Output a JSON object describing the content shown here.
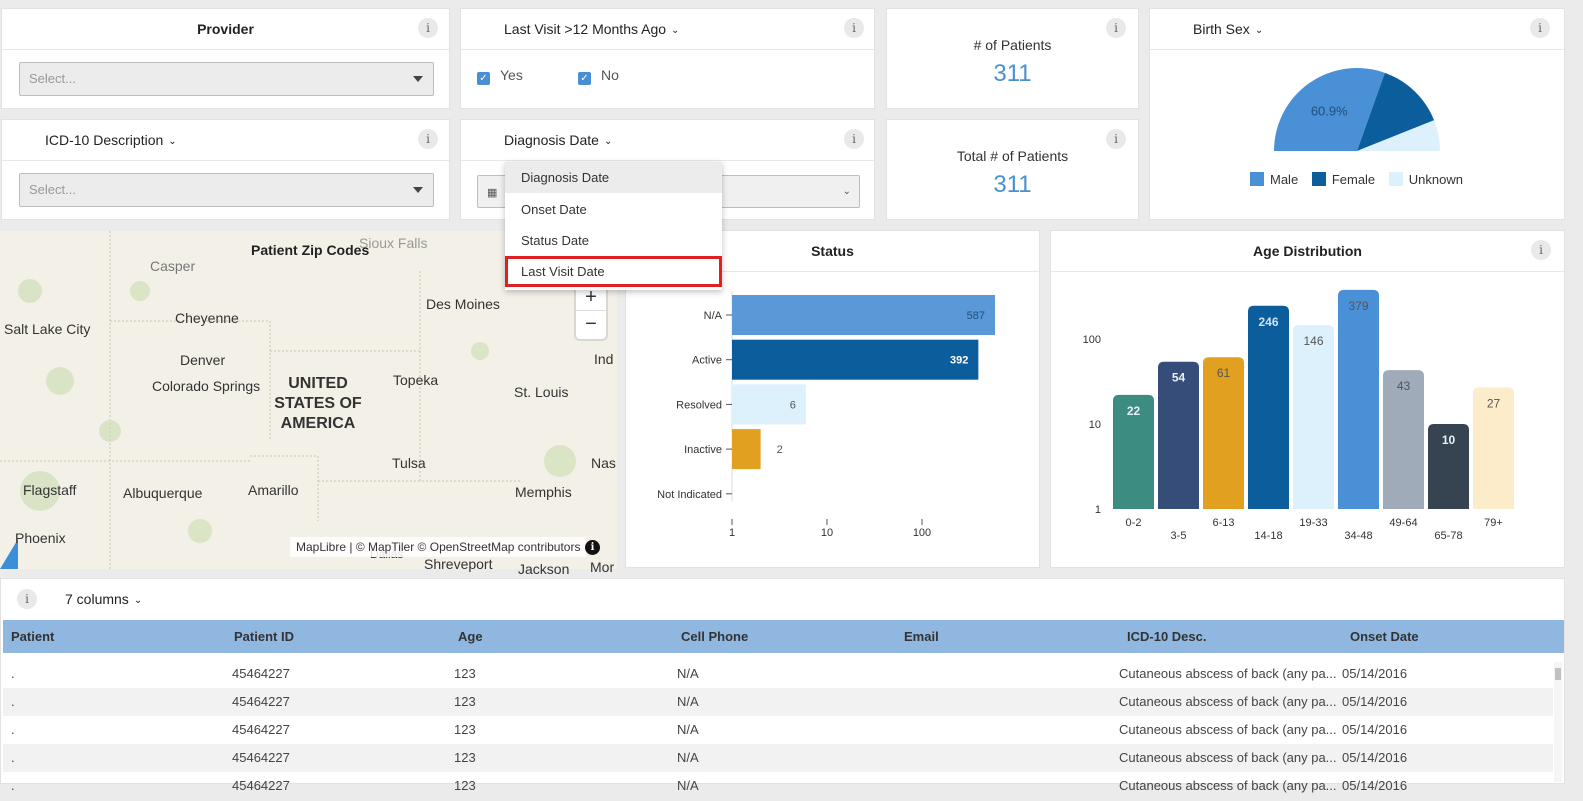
{
  "filters": {
    "provider": {
      "title": "Provider",
      "placeholder": "Select..."
    },
    "last_visit": {
      "title": "Last Visit >12 Months Ago",
      "options": [
        {
          "label": "Yes",
          "checked": true
        },
        {
          "label": "No",
          "checked": true
        }
      ]
    },
    "icd10": {
      "title": "ICD-10 Description",
      "placeholder": "Select..."
    },
    "date_filter": {
      "title": "Diagnosis Date",
      "value": ""
    }
  },
  "kpis": {
    "patients": {
      "label": "# of Patients",
      "value": "311"
    },
    "total_patients": {
      "label": "Total # of Patients",
      "value": "311"
    }
  },
  "date_dropdown": {
    "items": [
      "Diagnosis Date",
      "Onset Date",
      "Status Date",
      "Last Visit Date"
    ],
    "selected_index": 0,
    "highlighted_index": 3
  },
  "birth_sex": {
    "title": "Birth Sex",
    "colors": {
      "male": "#4a90d6",
      "female": "#0b5e9b",
      "unknown": "#ddf1fd"
    },
    "chart_data": {
      "type": "pie",
      "title": "Birth Sex",
      "labels": [
        "Male",
        "Female",
        "Unknown"
      ],
      "values": [
        60.9,
        27.0,
        12.1
      ],
      "data_labels": [
        "60.9%",
        "",
        ""
      ],
      "legend": "bottom",
      "half_donut": true
    }
  },
  "map": {
    "title": "Patient Zip Codes",
    "attribution": "MapLibre | © MapTiler © OpenStreetMap contributors",
    "country": [
      "UNITED",
      "STATES OF",
      "AMERICA"
    ],
    "cities": [
      "Sioux Falls",
      "Casper",
      "Salt Lake City",
      "Cheyenne",
      "Des Moines",
      "Denver",
      "Colorado Springs",
      "Topeka",
      "St. Louis",
      "Ind",
      "Tulsa",
      "Nas",
      "Flagstaff",
      "Albuquerque",
      "Amarillo",
      "Memphis",
      "Phoenix",
      "Shreveport",
      "Dallas",
      "Jackson",
      "Mor"
    ]
  },
  "status": {
    "title": "Status",
    "chart_data": {
      "type": "bar",
      "orientation": "horizontal",
      "title": "Status",
      "categories": [
        "N/A",
        "Active",
        "Resolved",
        "Inactive",
        "Not Indicated"
      ],
      "values": [
        587,
        392,
        6,
        2,
        0
      ],
      "colors": [
        "#5a98d8",
        "#0b5e9b",
        "#ddf1fd",
        "#e1a020",
        "#cccccc"
      ],
      "x_scale": "log",
      "xlim": [
        1,
        1000
      ],
      "x_ticks": [
        "1",
        "10",
        "100"
      ]
    }
  },
  "age_distribution": {
    "title": "Age Distribution",
    "chart_data": {
      "type": "bar",
      "title": "Age Distribution",
      "categories": [
        "0-2",
        "3-5",
        "6-13",
        "14-18",
        "19-33",
        "34-48",
        "49-64",
        "65-78",
        "79+"
      ],
      "values": [
        22,
        54,
        61,
        246,
        146,
        379,
        43,
        10,
        27
      ],
      "colors": [
        "#3d8c82",
        "#364c79",
        "#e1a020",
        "#0b5e9b",
        "#ddf1fd",
        "#4a90d6",
        "#9fabb8",
        "#364452",
        "#fdecca"
      ],
      "y_scale": "log",
      "ylim": [
        1,
        1000
      ],
      "y_ticks": [
        "1",
        "10",
        "100"
      ]
    }
  },
  "table": {
    "columns_label": "7 columns",
    "headers": [
      "Patient",
      "Patient ID",
      "Age",
      "Cell Phone",
      "Email",
      "ICD-10 Desc.",
      "Onset Date"
    ],
    "rows": [
      [
        ".",
        "45464227",
        "123",
        "N/A",
        "",
        "Cutaneous abscess of back (any pa...",
        "05/14/2016"
      ],
      [
        ".",
        "45464227",
        "123",
        "N/A",
        "",
        "Cutaneous abscess of back (any pa...",
        "05/14/2016"
      ],
      [
        ".",
        "45464227",
        "123",
        "N/A",
        "",
        "Cutaneous abscess of back (any pa...",
        "05/14/2016"
      ],
      [
        ".",
        "45464227",
        "123",
        "N/A",
        "",
        "Cutaneous abscess of back (any pa...",
        "05/14/2016"
      ],
      [
        ".",
        "45464227",
        "123",
        "N/A",
        "",
        "Cutaneous abscess of back (any pa...",
        "05/14/2016"
      ]
    ]
  }
}
